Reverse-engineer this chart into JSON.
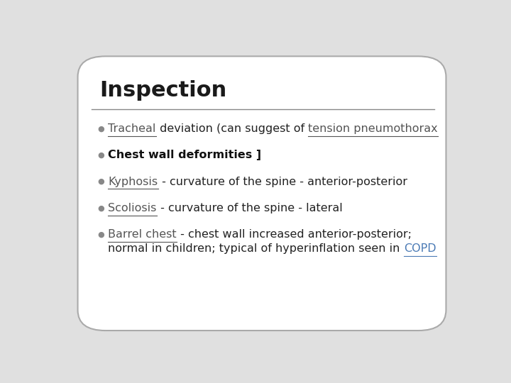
{
  "title": "Inspection",
  "title_fontsize": 22,
  "title_color": "#1a1a1a",
  "background_color": "#e0e0e0",
  "card_color": "#ffffff",
  "separator_color": "#888888",
  "bullet_color": "#888888",
  "font_size": 11.5,
  "bullets": [
    {
      "line1": [
        {
          "text": "Tracheal",
          "underline": true,
          "color": "#555555",
          "bold": false
        },
        {
          "text": " deviation (can suggest of ",
          "underline": false,
          "color": "#222222",
          "bold": false
        },
        {
          "text": "tension pneumothorax",
          "underline": true,
          "color": "#555555",
          "bold": false
        }
      ],
      "line2": []
    },
    {
      "line1": [
        {
          "text": "Chest wall deformities ]",
          "underline": false,
          "color": "#111111",
          "bold": true
        }
      ],
      "line2": []
    },
    {
      "line1": [
        {
          "text": "Kyphosis",
          "underline": true,
          "color": "#555555",
          "bold": false
        },
        {
          "text": " - curvature of the spine - anterior-posterior",
          "underline": false,
          "color": "#222222",
          "bold": false
        }
      ],
      "line2": []
    },
    {
      "line1": [
        {
          "text": "Scoliosis",
          "underline": true,
          "color": "#555555",
          "bold": false
        },
        {
          "text": " - curvature of the spine - lateral",
          "underline": false,
          "color": "#222222",
          "bold": false
        }
      ],
      "line2": []
    },
    {
      "line1": [
        {
          "text": "Barrel chest",
          "underline": true,
          "color": "#555555",
          "bold": false
        },
        {
          "text": " - chest wall increased anterior-posterior;",
          "underline": false,
          "color": "#222222",
          "bold": false
        }
      ],
      "line2": [
        {
          "text": "normal in children; typical of hyperinflation seen in ",
          "underline": false,
          "color": "#222222",
          "bold": false
        },
        {
          "text": "COPD",
          "underline": true,
          "color": "#4a7ab5",
          "bold": false
        }
      ]
    }
  ]
}
